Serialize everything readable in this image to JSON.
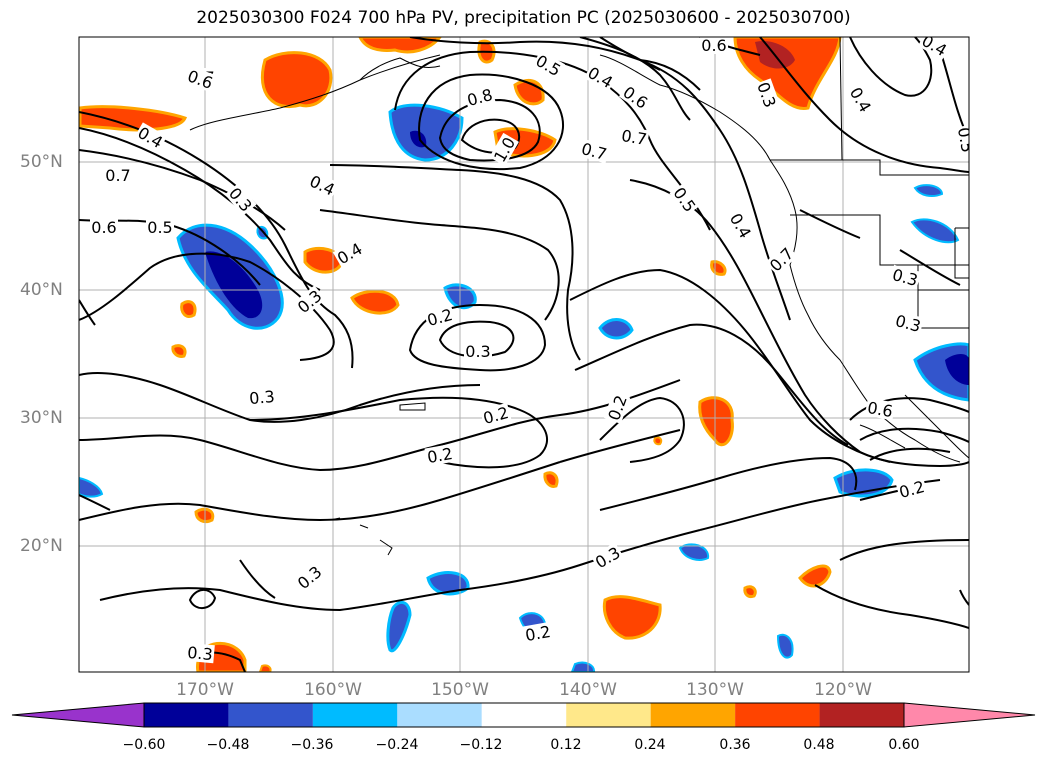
{
  "title": "2025030300 F024 700 hPa PV, precipitation PC (2025030600 - 2025030700)",
  "latitude_labels": [
    "50°N",
    "40°N",
    "30°N",
    "20°N"
  ],
  "longitude_labels": [
    "170°W",
    "160°W",
    "150°W",
    "140°W",
    "130°W",
    "120°W"
  ],
  "colorbar": {
    "tick_labels": [
      "−0.60",
      "−0.48",
      "−0.36",
      "−0.24",
      "−0.12",
      "0.12",
      "0.24",
      "0.36",
      "0.48",
      "0.60"
    ],
    "colors": [
      "#9933cc",
      "#000099",
      "#3355cc",
      "#00bbff",
      "#aaddff",
      "#ffffff",
      "#ffe88a",
      "#ffa500",
      "#ff4400",
      "#b22222",
      "#ff88aa"
    ]
  },
  "contour_labels": [
    "0.7",
    "0.6",
    "0.4",
    "0.7",
    "0.6",
    "0.5",
    "0.3",
    "0.4",
    "0.4",
    "0.3",
    "0.8",
    "1.0",
    "0.5",
    "0.4",
    "0.6",
    "0.7",
    "0.7",
    "0.5",
    "0.4",
    "0.7",
    "0.6",
    "0.3",
    "0.4",
    "0.5",
    "0.4",
    "0.3",
    "0.3",
    "0.2",
    "0.3",
    "0.3",
    "0.2",
    "0.2",
    "0.6",
    "0.2",
    "0.2",
    "0.3",
    "0.3",
    "0.2",
    "0.3"
  ],
  "colors": {
    "gridline": "#b0b0b0",
    "axis_label": "#808080",
    "contour": "#000000",
    "coast": "#000000"
  }
}
